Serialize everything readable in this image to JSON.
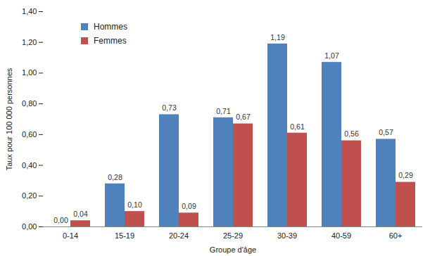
{
  "chart_data": {
    "type": "bar",
    "xlabel": "Groupe d'âge",
    "ylabel": "Taux pour 100 000 personnes",
    "categories": [
      "0-14",
      "15-19",
      "20-24",
      "25-29",
      "30-39",
      "40-59",
      "60+"
    ],
    "series": [
      {
        "name": "Hommes",
        "color": "#4f81bd",
        "values": [
          0.0,
          0.28,
          0.73,
          0.71,
          1.19,
          1.07,
          0.57
        ],
        "value_labels": [
          "0,00",
          "0,28",
          "0,73",
          "0,71",
          "1,19",
          "1,07",
          "0,57"
        ]
      },
      {
        "name": "Femmes",
        "color": "#c0504d",
        "values": [
          0.04,
          0.1,
          0.09,
          0.67,
          0.61,
          0.56,
          0.29
        ],
        "value_labels": [
          "0,04",
          "0,10",
          "0,09",
          "0,67",
          "0,61",
          "0,56",
          "0,29"
        ]
      }
    ],
    "ylim": [
      0,
      1.4
    ],
    "yticks": [
      {
        "value": 0,
        "label": "0,00"
      },
      {
        "value": 0.2,
        "label": "0,20"
      },
      {
        "value": 0.4,
        "label": "0,40"
      },
      {
        "value": 0.6,
        "label": "0,60"
      },
      {
        "value": 0.8,
        "label": "0,80"
      },
      {
        "value": 1.0,
        "label": "1,00"
      },
      {
        "value": 1.2,
        "label": "1,20"
      },
      {
        "value": 1.4,
        "label": "1,40"
      }
    ],
    "grid": false,
    "legend": "upper left",
    "data_labels": true
  }
}
